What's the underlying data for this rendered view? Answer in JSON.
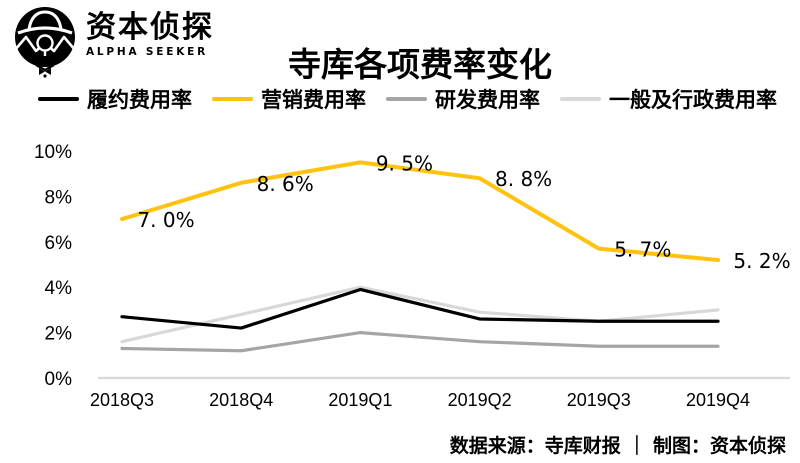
{
  "brand": {
    "name_cn": "资本侦探",
    "name_en": "ALPHA SEEKER"
  },
  "header": {
    "title": "寺库各项费率变化"
  },
  "footer": {
    "text": "数据来源：寺库财报 ｜ 制图：资本侦探"
  },
  "colors": {
    "black": "#000000",
    "accent_yellow": "#FFC20E",
    "gray": "#A5A5A5",
    "light_gray": "#D8D8D8",
    "axis_line": "#DADADA"
  },
  "chart_data": {
    "type": "line",
    "title": "寺库各项费率变化",
    "categories": [
      "2018Q3",
      "2018Q4",
      "2019Q1",
      "2019Q2",
      "2019Q3",
      "2019Q4"
    ],
    "yticks": [
      "0%",
      "2%",
      "4%",
      "6%",
      "8%",
      "10%"
    ],
    "ylim": [
      0,
      10
    ],
    "grid": false,
    "legend_position": "top",
    "series": [
      {
        "name": "履约费用率",
        "color": "#000000",
        "width": 3.2,
        "values": [
          2.7,
          2.2,
          3.9,
          2.6,
          2.5,
          2.5
        ]
      },
      {
        "name": "营销费用率",
        "color": "#FFC20E",
        "width": 4,
        "values": [
          7.0,
          8.6,
          9.5,
          8.8,
          5.7,
          5.2
        ],
        "labels": [
          "7. 0%",
          "8. 6%",
          "9. 5%",
          "8. 8%",
          "5. 7%",
          "5. 2%"
        ]
      },
      {
        "name": "研发费用率",
        "color": "#A5A5A5",
        "width": 3.2,
        "values": [
          1.3,
          1.2,
          2.0,
          1.6,
          1.4,
          1.4
        ]
      },
      {
        "name": "一般及行政费用率",
        "color": "#D8D8D8",
        "width": 3.2,
        "values": [
          1.6,
          2.8,
          4.0,
          2.9,
          2.5,
          3.0
        ]
      }
    ]
  }
}
